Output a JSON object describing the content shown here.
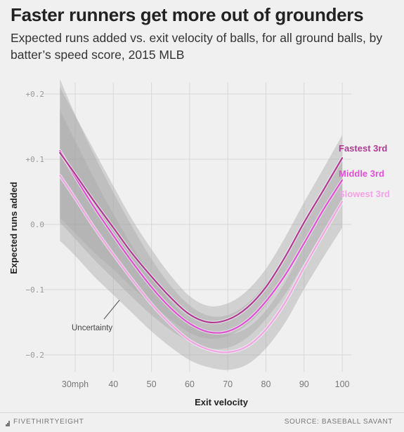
{
  "title": "Faster runners get more out of grounders",
  "subtitle": "Expected runs added vs. exit velocity of balls, for all ground balls, by batter’s speed score, 2015 MLB",
  "footer": {
    "brand": "FIVETHIRTYEIGHT",
    "source": "SOURCE: BASEBALL SAVANT"
  },
  "chart_data": {
    "type": "line",
    "xlabel": "Exit velocity",
    "ylabel": "Expected runs added",
    "xlim": [
      25,
      100
    ],
    "ylim": [
      -0.22,
      0.21
    ],
    "x_ticks": [
      30,
      40,
      50,
      60,
      70,
      80,
      90,
      100
    ],
    "x_tick_labels": [
      "30mph",
      "40",
      "50",
      "60",
      "70",
      "80",
      "90",
      "100"
    ],
    "y_ticks": [
      0.2,
      0.1,
      0.0,
      -0.1,
      -0.2
    ],
    "y_tick_labels": [
      "+0.2",
      "+0.1",
      "0.0",
      "−0.1",
      "−0.2"
    ],
    "grid": true,
    "annotation": "Uncertainty",
    "band_color": "#a8a8a8",
    "x": [
      26,
      30,
      35,
      40,
      45,
      50,
      55,
      60,
      65,
      70,
      75,
      80,
      85,
      90,
      95,
      100
    ],
    "series": [
      {
        "name": "Fastest 3rd",
        "color": "#b13a94",
        "values": [
          0.11,
          0.077,
          0.035,
          -0.005,
          -0.045,
          -0.08,
          -0.112,
          -0.138,
          -0.15,
          -0.146,
          -0.128,
          -0.096,
          -0.05,
          0.003,
          0.052,
          0.102
        ],
        "band_width": [
          0.1,
          0.09,
          0.078,
          0.064,
          0.052,
          0.042,
          0.034,
          0.028,
          0.025,
          0.025,
          0.026,
          0.028,
          0.03,
          0.031,
          0.033,
          0.035
        ]
      },
      {
        "name": "Middle 3rd",
        "color": "#e14fd4",
        "values": [
          0.113,
          0.073,
          0.026,
          -0.017,
          -0.058,
          -0.096,
          -0.128,
          -0.152,
          -0.165,
          -0.164,
          -0.148,
          -0.118,
          -0.078,
          -0.029,
          0.022,
          0.068
        ],
        "band_width": [
          0.11,
          0.095,
          0.08,
          0.066,
          0.054,
          0.043,
          0.034,
          0.028,
          0.025,
          0.025,
          0.026,
          0.027,
          0.029,
          0.031,
          0.033,
          0.036
        ]
      },
      {
        "name": "Slowest 3rd",
        "color": "#f3a2e6",
        "values": [
          0.075,
          0.04,
          -0.005,
          -0.046,
          -0.085,
          -0.122,
          -0.153,
          -0.178,
          -0.192,
          -0.196,
          -0.187,
          -0.161,
          -0.12,
          -0.066,
          -0.015,
          0.035
        ],
        "band_width": [
          0.1,
          0.088,
          0.075,
          0.062,
          0.051,
          0.042,
          0.035,
          0.03,
          0.027,
          0.027,
          0.028,
          0.029,
          0.031,
          0.033,
          0.036,
          0.04
        ]
      }
    ]
  }
}
